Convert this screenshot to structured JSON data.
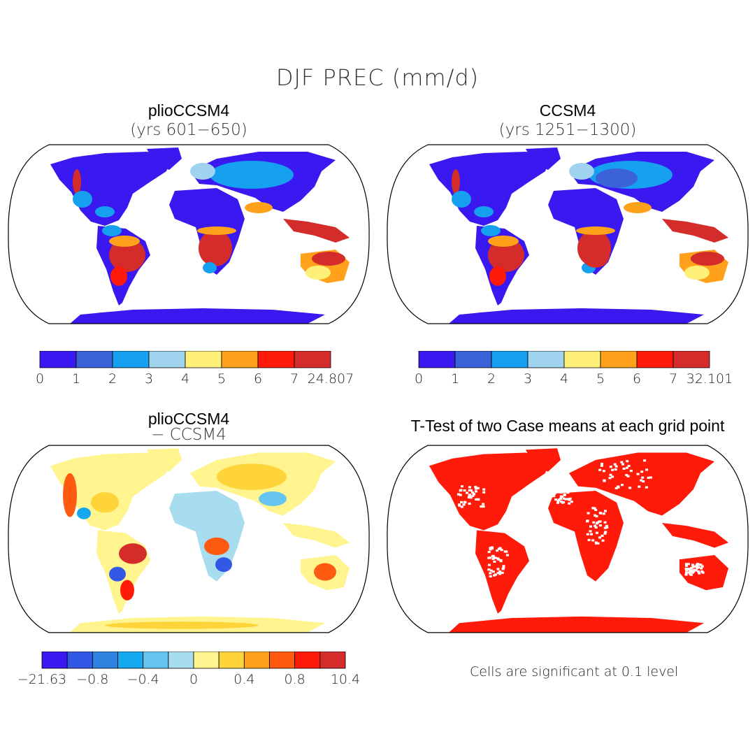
{
  "figure": {
    "title": "DJF PREC (mm/d)",
    "significance_note": "Cells are significant at 0.1 level"
  },
  "panels": [
    {
      "id": "plio",
      "title": "plioCCSM4",
      "subtitle": "(yrs 601−650)",
      "colorbar": {
        "colors": [
          "#3a18f0",
          "#3b62d9",
          "#16a0f0",
          "#9fd3ee",
          "#fff07a",
          "#ffa11a",
          "#ff1a0a",
          "#d42b2b"
        ],
        "tick_labels": [
          "0",
          "1",
          "2",
          "3",
          "4",
          "5",
          "6",
          "7",
          "24.807"
        ]
      }
    },
    {
      "id": "ccsm4",
      "title": "CCSM4",
      "subtitle": "(yrs 1251−1300)",
      "colorbar": {
        "colors": [
          "#3a18f0",
          "#3b62d9",
          "#16a0f0",
          "#9fd3ee",
          "#fff07a",
          "#ffa11a",
          "#ff1a0a",
          "#d42b2b"
        ],
        "tick_labels": [
          "0",
          "1",
          "2",
          "3",
          "4",
          "5",
          "6",
          "7",
          "32.101"
        ]
      }
    },
    {
      "id": "diff",
      "title": "plioCCSM4",
      "subtitle": "− CCSM4",
      "colorbar": {
        "colors": [
          "#3a18f0",
          "#3458e6",
          "#2e82e0",
          "#16a8ee",
          "#66c4f0",
          "#a8dcef",
          "#fff48e",
          "#ffd43a",
          "#ffa11a",
          "#ff5a12",
          "#ff1a0a",
          "#d42b2b"
        ],
        "tick_labels": [
          "−21.63",
          "−0.8",
          "−0.4",
          "0",
          "0.4",
          "0.8",
          "10.4"
        ]
      }
    },
    {
      "id": "ttest",
      "title": "T-Test of two Case means at each grid point"
    }
  ]
}
